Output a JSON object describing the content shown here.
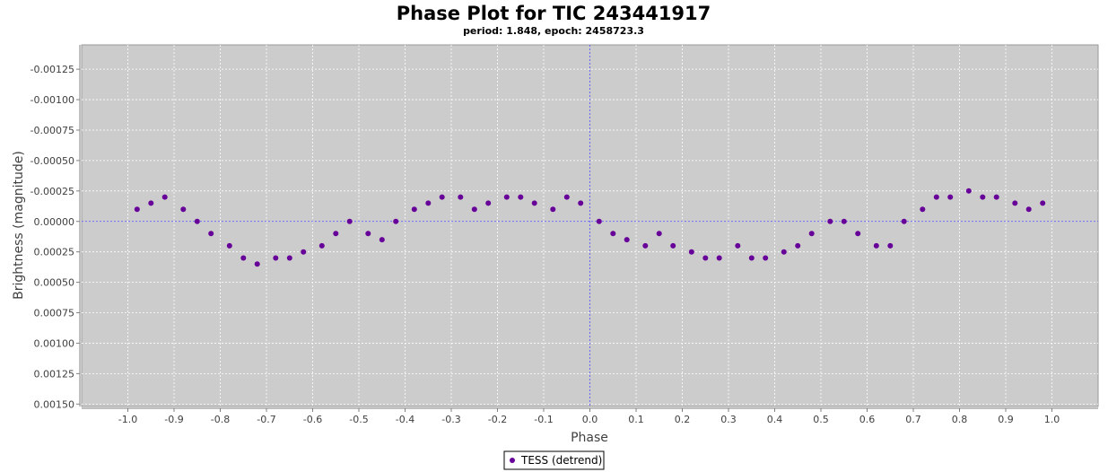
{
  "chart_data": {
    "type": "scatter",
    "title": "Phase Plot for TIC 243441917",
    "subtitle": "period: 1.848, epoch: 2458723.3",
    "xlabel": "Phase",
    "ylabel": "Brightness (magnitude)",
    "xlim": [
      -1.1,
      1.1
    ],
    "ylim": [
      0.00152,
      -0.00145
    ],
    "y_inverted": true,
    "x_ticks": [
      -1.0,
      -0.9,
      -0.8,
      -0.7,
      -0.6,
      -0.5,
      -0.4,
      -0.3,
      -0.2,
      -0.1,
      0.0,
      0.1,
      0.2,
      0.3,
      0.4,
      0.5,
      0.6,
      0.7,
      0.8,
      0.9,
      1.0
    ],
    "x_tick_labels": [
      "-1.0",
      "-0.9",
      "-0.8",
      "-0.7",
      "-0.6",
      "-0.5",
      "-0.4",
      "-0.3",
      "-0.2",
      "-0.1",
      "0.0",
      "0.1",
      "0.2",
      "0.3",
      "0.4",
      "0.5",
      "0.6",
      "0.7",
      "0.8",
      "0.9",
      "1.0"
    ],
    "y_ticks": [
      -0.00125,
      -0.001,
      -0.00075,
      -0.0005,
      -0.00025,
      0.0,
      0.00025,
      0.0005,
      0.00075,
      0.001,
      0.00125,
      0.0015
    ],
    "y_tick_labels": [
      "-0.00125",
      "-0.00100",
      "-0.00075",
      "-0.00050",
      "-0.00025",
      "0.00000",
      "0.00025",
      "0.00050",
      "0.00075",
      "0.00100",
      "0.00125",
      "0.00150"
    ],
    "grid": true,
    "legend_position": "bottom-center",
    "series": [
      {
        "name": "TESS (detrend)",
        "color": "#660099",
        "x": [
          -0.98,
          -0.95,
          -0.92,
          -0.88,
          -0.85,
          -0.82,
          -0.78,
          -0.75,
          -0.72,
          -0.68,
          -0.65,
          -0.62,
          -0.58,
          -0.55,
          -0.52,
          -0.48,
          -0.45,
          -0.42,
          -0.38,
          -0.35,
          -0.32,
          -0.28,
          -0.25,
          -0.22,
          -0.18,
          -0.15,
          -0.12,
          -0.08,
          -0.05,
          -0.02,
          0.02,
          0.05,
          0.08,
          0.12,
          0.15,
          0.18,
          0.22,
          0.25,
          0.28,
          0.32,
          0.35,
          0.38,
          0.42,
          0.45,
          0.48,
          0.52,
          0.55,
          0.58,
          0.62,
          0.65,
          0.68,
          0.72,
          0.75,
          0.78,
          0.82,
          0.85,
          0.88,
          0.92,
          0.95,
          0.98
        ],
        "y": [
          -0.0001,
          -0.00015,
          -0.0002,
          -0.0001,
          0.0,
          0.0001,
          0.0002,
          0.0003,
          0.00035,
          0.0003,
          0.0003,
          0.00025,
          0.0002,
          0.0001,
          0.0,
          0.0001,
          0.00015,
          0.0,
          -0.0001,
          -0.00015,
          -0.0002,
          -0.0002,
          -0.0001,
          -0.00015,
          -0.0002,
          -0.0002,
          -0.00015,
          -0.0001,
          -0.0002,
          -0.00015,
          0.0,
          0.0001,
          0.00015,
          0.0002,
          0.0001,
          0.0002,
          0.00025,
          0.0003,
          0.0003,
          0.0002,
          0.0003,
          0.0003,
          0.00025,
          0.0002,
          0.0001,
          0.0,
          0.0,
          0.0001,
          0.0002,
          0.0002,
          0.0,
          -0.0001,
          -0.0002,
          -0.0002,
          -0.00025,
          -0.0002,
          -0.0002,
          -0.00015,
          -0.0001,
          -0.00015
        ]
      }
    ]
  }
}
